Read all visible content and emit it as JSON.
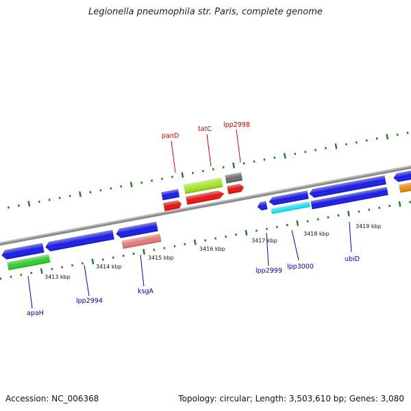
{
  "title": "Legionella pneumophila str. Paris, complete genome",
  "accession_text": "Accession: NC_006368",
  "topology_text": "Topology: circular; Length: 3,503,610 bp; Genes: 3,080",
  "colors": {
    "backbone": "#8c8c8c",
    "tick": "#1e7a1e",
    "gene_blue": "#1a1ae6",
    "gene_red": "#e61414",
    "gene_lime": "#a6e62a",
    "gene_gray": "#6e6e6e",
    "gene_green": "#33cc33",
    "gene_pink": "#e67a7a",
    "gene_cyan": "#22e6f0",
    "gene_orange": "#f08c14",
    "label_top": "#cc0000",
    "label_bottom": "#0000aa"
  },
  "scale_labels": [
    "3413 kbp",
    "3414 kbp",
    "3415 kbp",
    "3416 kbp",
    "3417 kbp",
    "3418 kbp",
    "3419 kbp"
  ],
  "top_gene_labels": [
    "panD",
    "tatC",
    "lpp2998"
  ],
  "bottom_gene_labels": [
    "apaH",
    "lpp2994",
    "ksgA",
    "lpp2999",
    "lpp3000",
    "ubiD"
  ]
}
